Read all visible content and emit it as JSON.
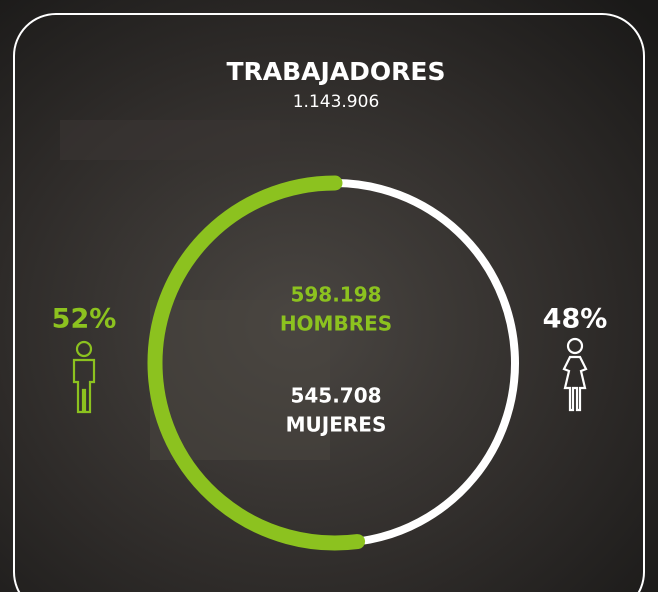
{
  "chart_data": {
    "type": "donut",
    "title": "TRABAJADORES",
    "total": {
      "value": 1143906,
      "label": "1.143.906"
    },
    "categories": [
      "HOMBRES",
      "MUJERES"
    ],
    "values": [
      52,
      48
    ],
    "value_labels": [
      "52%",
      "48%"
    ],
    "counts": [
      598198,
      545708
    ],
    "count_labels": [
      "598.198",
      "545.708"
    ],
    "colors": [
      "#8cc21f",
      "#ffffff"
    ]
  }
}
